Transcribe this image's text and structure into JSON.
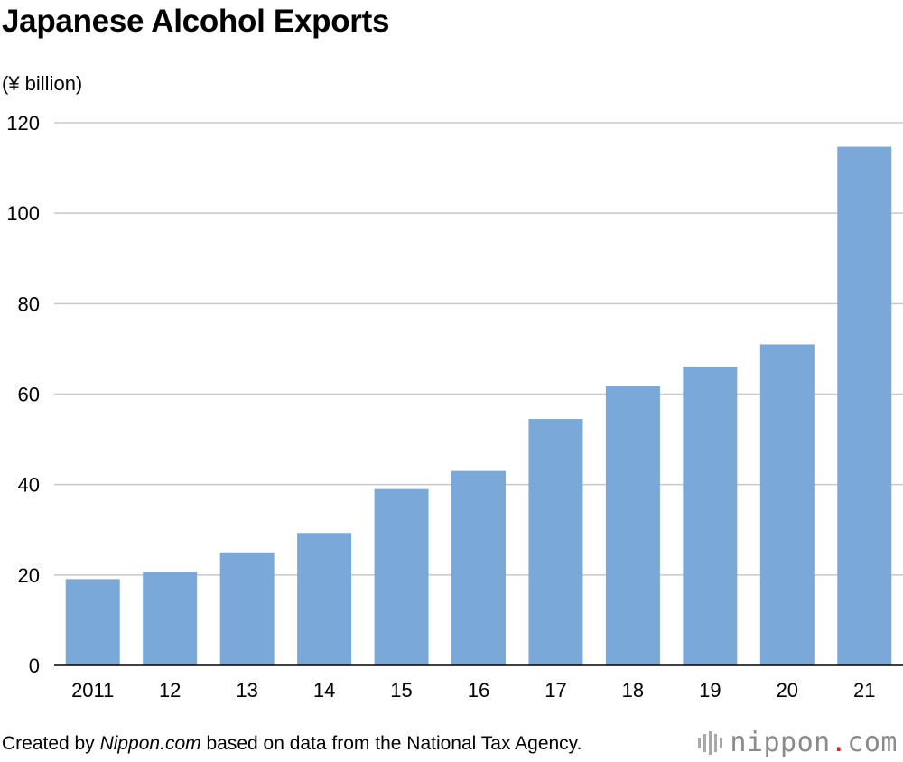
{
  "header": {
    "title": "Japanese Alcohol Exports",
    "unit": "(¥ billion)"
  },
  "footer": {
    "prefix": "Created by ",
    "source_italic": "Nippon.com",
    "suffix": " based on data from the National Tax Agency."
  },
  "logo": {
    "name": "nippon",
    "dot": ".",
    "tld": "com",
    "dot_color": "#e0202a"
  },
  "colors": {
    "bar": "#7aa9d9",
    "grid": "#c8c8c8",
    "axis": "#000000"
  },
  "chart_data": {
    "type": "bar",
    "title": "Japanese Alcohol Exports",
    "ylabel": "(¥ billion)",
    "xlabel": "",
    "categories": [
      "2011",
      "12",
      "13",
      "14",
      "15",
      "16",
      "17",
      "18",
      "19",
      "20",
      "21"
    ],
    "values": [
      19.1,
      20.6,
      25.0,
      29.3,
      39.0,
      43.0,
      54.5,
      61.8,
      66.1,
      71.0,
      114.7
    ],
    "ylim": [
      0,
      120
    ],
    "yticks": [
      0,
      20,
      40,
      60,
      80,
      100,
      120
    ],
    "grid": true
  }
}
